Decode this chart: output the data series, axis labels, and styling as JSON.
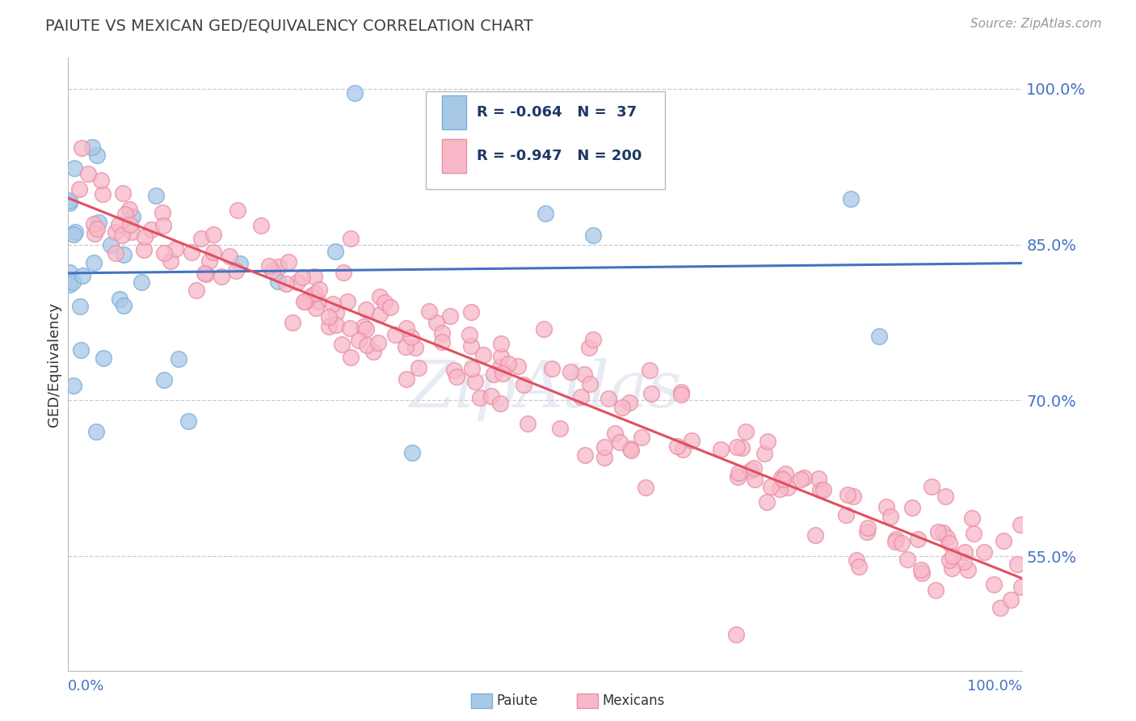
{
  "title": "PAIUTE VS MEXICAN GED/EQUIVALENCY CORRELATION CHART",
  "source": "Source: ZipAtlas.com",
  "ylabel": "GED/Equivalency",
  "yticks": [
    0.55,
    0.7,
    0.85,
    1.0
  ],
  "ytick_labels": [
    "55.0%",
    "70.0%",
    "85.0%",
    "100.0%"
  ],
  "xlim": [
    0.0,
    1.0
  ],
  "ylim": [
    0.44,
    1.03
  ],
  "paiute_R": -0.064,
  "paiute_N": 37,
  "mexican_R": -0.947,
  "mexican_N": 200,
  "paiute_scatter_color": "#A8C8E8",
  "paiute_edge_color": "#7EB0D8",
  "mexican_scatter_color": "#F8B8C8",
  "mexican_edge_color": "#E890A8",
  "paiute_line_color": "#4472C4",
  "mexican_line_color": "#E05060",
  "legend_label_paiute": "Paiute",
  "legend_label_mexican": "Mexicans",
  "background_color": "#FFFFFF",
  "grid_color": "#CCCCCC",
  "title_color": "#404040",
  "tick_color": "#4472C4",
  "legend_text_color": "#1F3864",
  "paiute_seed": 12,
  "mexican_seed": 77,
  "paiute_line_intercept": 0.858,
  "paiute_line_slope": -0.025,
  "mexican_line_intercept": 0.9,
  "mexican_line_slope": -0.37
}
